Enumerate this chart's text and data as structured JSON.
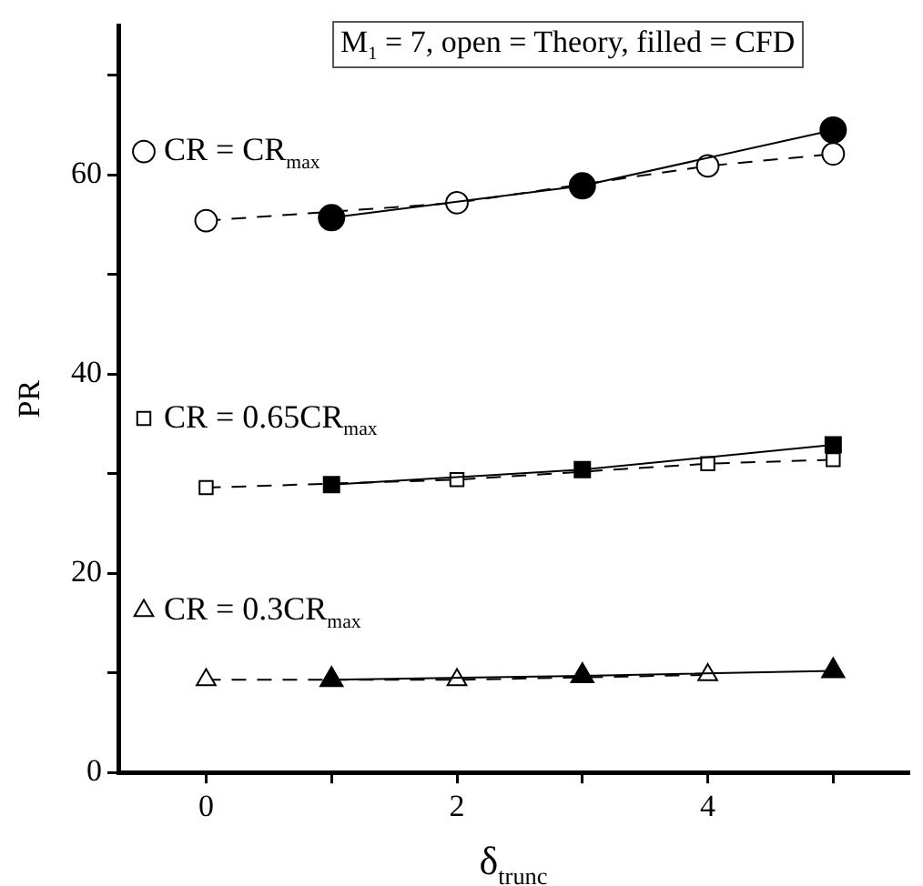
{
  "chart_data": {
    "type": "line",
    "xlabel": "δ$_{trunc}$",
    "ylabel": "PR",
    "annotations": [
      "M$_{1}$ = 7, open = Theory, filled = CFD"
    ],
    "xlim": [
      -0.7,
      5.6
    ],
    "ylim": [
      0,
      75
    ],
    "xticks": [
      0,
      {
        "value": 1,
        "label": null
      },
      2,
      {
        "value": 3,
        "label": null
      },
      4,
      {
        "value": 5,
        "label": null
      }
    ],
    "yticks": [
      0,
      {
        "value": 10,
        "label": null
      },
      20,
      {
        "value": 30,
        "label": null
      },
      40,
      {
        "value": 50,
        "label": null
      },
      60,
      {
        "value": 70,
        "label": null
      }
    ],
    "grid": false,
    "legend": "left",
    "series": [
      {
        "name": "CR = CR$_{max}$",
        "color": "#000000",
        "marker": "circle",
        "line_style": "dashed",
        "x": [
          0,
          2,
          4,
          5
        ],
        "values": [
          55.4,
          57.2,
          60.9,
          62.1
        ]
      },
      {
        "color": "#000000",
        "marker": "circle",
        "line_style": "solid",
        "x": [
          1,
          3,
          5
        ],
        "values": [
          55.7,
          58.9,
          64.5
        ]
      },
      {
        "name": "CR = 0.65CR$_{max}$",
        "color": "#000000",
        "marker": "square",
        "line_style": "dashed",
        "x": [
          0,
          2,
          4,
          5
        ],
        "values": [
          28.6,
          29.4,
          31.0,
          31.4
        ]
      },
      {
        "color": "#000000",
        "marker": "square",
        "line_style": "solid",
        "x": [
          1,
          3,
          5
        ],
        "values": [
          28.9,
          30.4,
          32.9
        ]
      },
      {
        "name": "CR = 0.3CR$_{max}$",
        "color": "#000000",
        "marker": "triangle",
        "line_style": "dashed",
        "x": [
          0,
          2,
          4
        ],
        "values": [
          9.3,
          9.3,
          9.8
        ]
      },
      {
        "color": "#000000",
        "marker": "triangle",
        "line_style": "solid",
        "x": [
          1,
          3,
          5
        ],
        "values": [
          9.3,
          9.7,
          10.2
        ]
      }
    ]
  }
}
